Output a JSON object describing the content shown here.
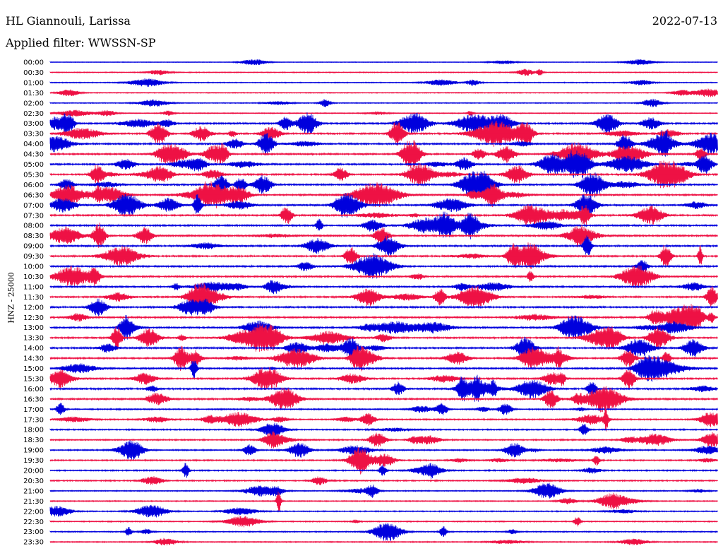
{
  "header": {
    "station": "HL Giannouli, Larissa",
    "filter": "Applied filter: WWSSN-SP",
    "date": "2022-07-13"
  },
  "chart_data": {
    "type": "helicorder",
    "title": "HL Giannouli, Larissa",
    "subtitle": "Applied filter: WWSSN-SP",
    "date": "2022-07-13",
    "ylabel": "HNZ - 25000",
    "row_labels": [
      "00:00",
      "00:30",
      "01:00",
      "01:30",
      "02:00",
      "02:30",
      "03:00",
      "03:30",
      "04:00",
      "04:30",
      "05:00",
      "05:30",
      "06:00",
      "06:30",
      "07:00",
      "07:30",
      "08:00",
      "08:30",
      "09:00",
      "09:30",
      "10:00",
      "10:30",
      "11:00",
      "11:30",
      "12:00",
      "12:30",
      "13:00",
      "13:30",
      "14:00",
      "14:30",
      "15:00",
      "15:30",
      "16:00",
      "16:30",
      "17:00",
      "17:30",
      "18:00",
      "18:30",
      "19:00",
      "19:30",
      "20:00",
      "20:30",
      "21:00",
      "21:30",
      "22:00",
      "22:30",
      "23:00",
      "23:30"
    ],
    "colors": [
      "#0000dd",
      "#ee1144"
    ],
    "grid": false
  }
}
